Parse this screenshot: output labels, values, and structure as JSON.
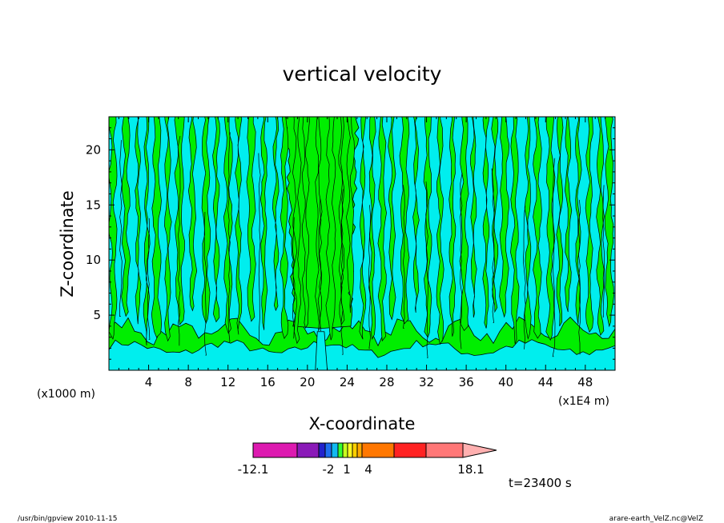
{
  "chart_data": {
    "type": "heatmap",
    "title": "vertical velocity",
    "xlabel": "X-coordinate",
    "ylabel": "Z-coordinate",
    "x_unit_left": "(x1000 m)",
    "x_unit_right": "(x1E4 m)",
    "xlim": [
      0,
      51
    ],
    "ylim": [
      0,
      23
    ],
    "x_ticks": [
      4,
      8,
      12,
      16,
      20,
      24,
      28,
      32,
      36,
      40,
      44,
      48
    ],
    "y_ticks": [
      5,
      10,
      15,
      20
    ],
    "time_label": "t=23400 s",
    "colorbar": {
      "labels": [
        {
          "text": "-12.1",
          "value": -12.1
        },
        {
          "text": "-2",
          "value": -2
        },
        {
          "text": "1",
          "value": 1
        },
        {
          "text": "4",
          "value": 4
        },
        {
          "text": "18.1",
          "value": 18.1
        }
      ],
      "segments": [
        {
          "color": "#dd1ab0"
        },
        {
          "color": "#8a1ab8"
        },
        {
          "color": "#2222cc"
        },
        {
          "color": "#1f6ff0"
        },
        {
          "color": "#12b9f0"
        },
        {
          "color": "#33ff33"
        },
        {
          "color": "#c8ff20"
        },
        {
          "color": "#ffff22"
        },
        {
          "color": "#ffd000"
        },
        {
          "color": "#ffaa00"
        },
        {
          "color": "#ff7700"
        },
        {
          "color": "#ff2222"
        },
        {
          "color": "#ff7777"
        },
        {
          "color": "#ffb0b0"
        }
      ]
    },
    "field_colors": {
      "positive": "#00ee00",
      "negative": "#00eeee",
      "contour": "#000000"
    }
  },
  "footer": {
    "left": "/usr/bin/gpview  2010-11-15",
    "right": "arare-earth_VelZ.nc@VelZ"
  }
}
